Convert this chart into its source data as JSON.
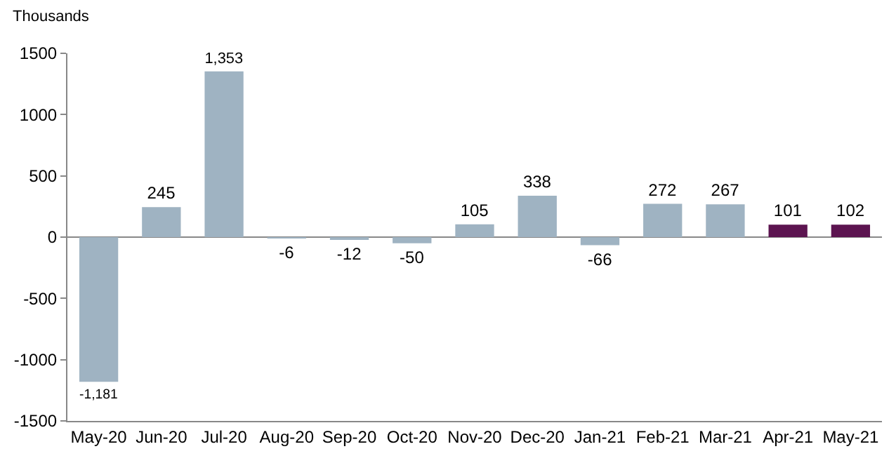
{
  "chart_data": {
    "type": "bar",
    "ylabel": "Thousands",
    "categories": [
      "May-20",
      "Jun-20",
      "Jul-20",
      "Aug-20",
      "Sep-20",
      "Oct-20",
      "Nov-20",
      "Dec-20",
      "Jan-21",
      "Feb-21",
      "Mar-21",
      "Apr-21",
      "May-21"
    ],
    "values": [
      -1181,
      245,
      1353,
      -6,
      -12,
      -50,
      105,
      338,
      -66,
      272,
      267,
      101,
      102
    ],
    "value_labels": [
      "-1,181",
      "245",
      "1,353",
      "-6",
      "-12",
      "-50",
      "105",
      "338",
      "-66",
      "272",
      "267",
      "101",
      "102"
    ],
    "colors": [
      "#9fb3c2",
      "#9fb3c2",
      "#9fb3c2",
      "#9fb3c2",
      "#9fb3c2",
      "#9fb3c2",
      "#9fb3c2",
      "#9fb3c2",
      "#9fb3c2",
      "#9fb3c2",
      "#9fb3c2",
      "#5c1450",
      "#5c1450"
    ],
    "ylim": [
      -1500,
      1500
    ],
    "yticks": [
      -1500,
      -1000,
      -500,
      0,
      500,
      1000,
      1500
    ]
  }
}
